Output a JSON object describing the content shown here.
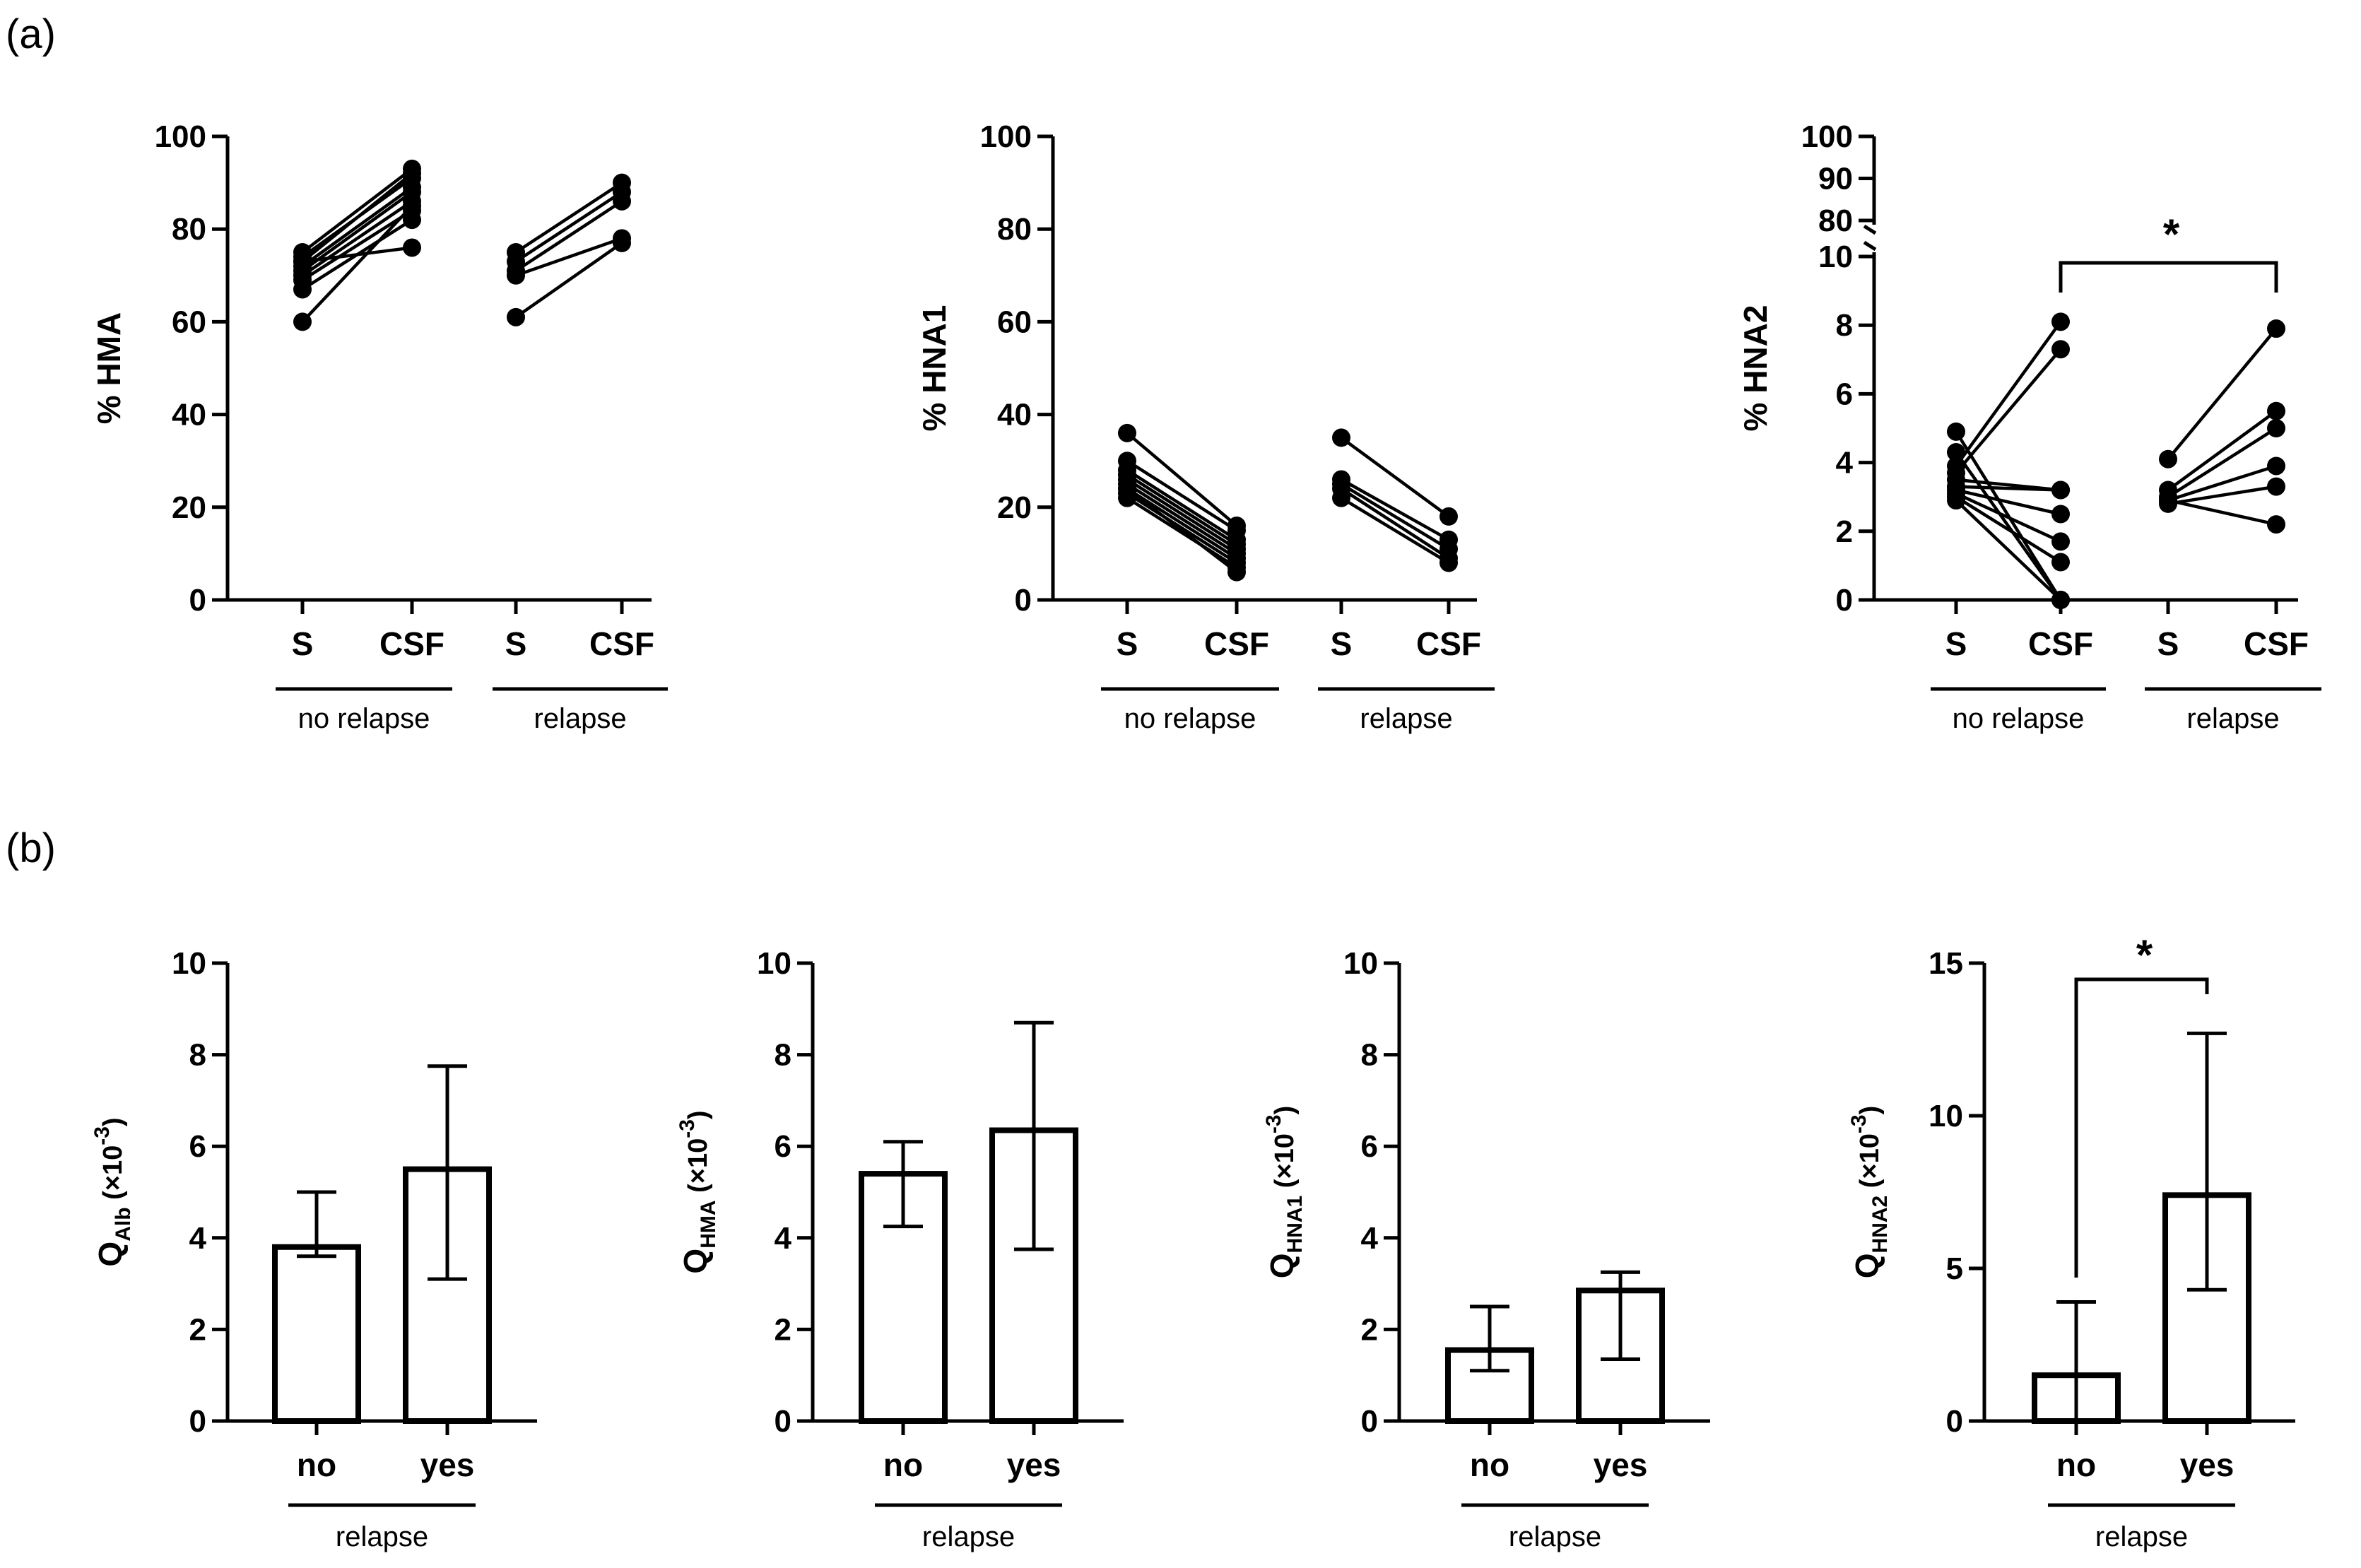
{
  "panels": {
    "a": "(a)",
    "b": "(b)"
  },
  "chart_data": [
    {
      "type": "line",
      "panel": "a",
      "title": "",
      "ylabel": "% HMA",
      "ylim": [
        0,
        100
      ],
      "yticks": [
        0,
        20,
        40,
        60,
        80,
        100
      ],
      "xcategories": [
        "S",
        "CSF",
        "S",
        "CSF"
      ],
      "groups": [
        "no relapse",
        "relapse"
      ],
      "pairs": [
        {
          "group": 0,
          "s": 75,
          "csf": 93
        },
        {
          "group": 0,
          "s": 74,
          "csf": 91
        },
        {
          "group": 0,
          "s": 73,
          "csf": 92
        },
        {
          "group": 0,
          "s": 72,
          "csf": 89
        },
        {
          "group": 0,
          "s": 71,
          "csf": 88
        },
        {
          "group": 0,
          "s": 70,
          "csf": 86
        },
        {
          "group": 0,
          "s": 69,
          "csf": 84
        },
        {
          "group": 0,
          "s": 67,
          "csf": 82
        },
        {
          "group": 0,
          "s": 73,
          "csf": 76
        },
        {
          "group": 0,
          "s": 60,
          "csf": 85
        },
        {
          "group": 1,
          "s": 75,
          "csf": 90
        },
        {
          "group": 1,
          "s": 73,
          "csf": 88
        },
        {
          "group": 1,
          "s": 71,
          "csf": 86
        },
        {
          "group": 1,
          "s": 70,
          "csf": 78
        },
        {
          "group": 1,
          "s": 61,
          "csf": 77
        }
      ]
    },
    {
      "type": "line",
      "panel": "a",
      "title": "",
      "ylabel": "% HNA1",
      "ylim": [
        0,
        100
      ],
      "yticks": [
        0,
        20,
        40,
        60,
        80,
        100
      ],
      "xcategories": [
        "S",
        "CSF",
        "S",
        "CSF"
      ],
      "groups": [
        "no relapse",
        "relapse"
      ],
      "pairs": [
        {
          "group": 0,
          "s": 36,
          "csf": 16
        },
        {
          "group": 0,
          "s": 30,
          "csf": 15
        },
        {
          "group": 0,
          "s": 28,
          "csf": 13
        },
        {
          "group": 0,
          "s": 27,
          "csf": 12
        },
        {
          "group": 0,
          "s": 26,
          "csf": 11
        },
        {
          "group": 0,
          "s": 25,
          "csf": 10
        },
        {
          "group": 0,
          "s": 24,
          "csf": 9
        },
        {
          "group": 0,
          "s": 23,
          "csf": 8
        },
        {
          "group": 0,
          "s": 22,
          "csf": 7
        },
        {
          "group": 0,
          "s": 24,
          "csf": 6
        },
        {
          "group": 1,
          "s": 35,
          "csf": 18
        },
        {
          "group": 1,
          "s": 26,
          "csf": 13
        },
        {
          "group": 1,
          "s": 25,
          "csf": 11
        },
        {
          "group": 1,
          "s": 24,
          "csf": 9
        },
        {
          "group": 1,
          "s": 22,
          "csf": 8
        }
      ]
    },
    {
      "type": "line",
      "panel": "a",
      "title": "",
      "ylabel": "% HNA2",
      "ylim_lower": [
        0,
        10
      ],
      "yticks_lower": [
        0,
        2,
        4,
        6,
        8,
        10
      ],
      "ylim_upper": [
        80,
        100
      ],
      "yticks_upper": [
        80,
        90,
        100
      ],
      "xcategories": [
        "S",
        "CSF",
        "S",
        "CSF"
      ],
      "groups": [
        "no relapse",
        "relapse"
      ],
      "significance": {
        "from": "no relapse CSF",
        "to": "relapse CSF",
        "label": "*"
      },
      "pairs": [
        {
          "group": 0,
          "s": 4.9,
          "csf": 0.0
        },
        {
          "group": 0,
          "s": 4.3,
          "csf": 0.0
        },
        {
          "group": 0,
          "s": 3.9,
          "csf": 8.1
        },
        {
          "group": 0,
          "s": 3.7,
          "csf": 7.3
        },
        {
          "group": 0,
          "s": 3.5,
          "csf": 3.2
        },
        {
          "group": 0,
          "s": 3.3,
          "csf": 3.2
        },
        {
          "group": 0,
          "s": 3.2,
          "csf": 2.5
        },
        {
          "group": 0,
          "s": 3.1,
          "csf": 1.7
        },
        {
          "group": 0,
          "s": 3.0,
          "csf": 1.1
        },
        {
          "group": 0,
          "s": 2.9,
          "csf": 0.0
        },
        {
          "group": 1,
          "s": 4.1,
          "csf": 7.9
        },
        {
          "group": 1,
          "s": 3.2,
          "csf": 5.5
        },
        {
          "group": 1,
          "s": 3.0,
          "csf": 5.0
        },
        {
          "group": 1,
          "s": 2.9,
          "csf": 3.9
        },
        {
          "group": 1,
          "s": 2.8,
          "csf": 3.3
        },
        {
          "group": 1,
          "s": 2.9,
          "csf": 2.2
        }
      ]
    },
    {
      "type": "bar",
      "panel": "b",
      "ylabel": {
        "main": "Q",
        "sub": "Alb",
        "unit": "(×10",
        "exp": "-3",
        "close": ")"
      },
      "ylim": [
        0,
        10
      ],
      "yticks": [
        0,
        2,
        4,
        6,
        8,
        10
      ],
      "categories": [
        "no",
        "yes"
      ],
      "group_label": "relapse",
      "values": [
        3.8,
        5.5
      ],
      "err_low": [
        3.6,
        3.1
      ],
      "err_high": [
        5.0,
        7.75
      ]
    },
    {
      "type": "bar",
      "panel": "b",
      "ylabel": {
        "main": "Q",
        "sub": "HMA",
        "unit": "(×10",
        "exp": "-3",
        "close": ")"
      },
      "ylim": [
        0,
        10
      ],
      "yticks": [
        0,
        2,
        4,
        6,
        8,
        10
      ],
      "categories": [
        "no",
        "yes"
      ],
      "group_label": "relapse",
      "values": [
        5.4,
        6.35
      ],
      "err_low": [
        4.25,
        3.75
      ],
      "err_high": [
        6.1,
        8.7
      ]
    },
    {
      "type": "bar",
      "panel": "b",
      "ylabel": {
        "main": "Q",
        "sub": "HNA1",
        "unit": "(×10",
        "exp": "-3",
        "close": ")"
      },
      "ylim": [
        0,
        10
      ],
      "yticks": [
        0,
        2,
        4,
        6,
        8,
        10
      ],
      "categories": [
        "no",
        "yes"
      ],
      "group_label": "relapse",
      "values": [
        1.55,
        2.85
      ],
      "err_low": [
        1.1,
        1.35
      ],
      "err_high": [
        2.5,
        3.25
      ]
    },
    {
      "type": "bar",
      "panel": "b",
      "ylabel": {
        "main": "Q",
        "sub": "HNA2",
        "unit": "(×10",
        "exp": "-3",
        "close": ")"
      },
      "ylim": [
        0,
        15
      ],
      "yticks": [
        0,
        5,
        10,
        15
      ],
      "categories": [
        "no",
        "yes"
      ],
      "group_label": "relapse",
      "values": [
        1.5,
        7.4
      ],
      "err_low": [
        0,
        4.3
      ],
      "err_high": [
        3.9,
        12.7
      ],
      "significance": {
        "from": "no",
        "to": "yes",
        "label": "*"
      }
    }
  ]
}
